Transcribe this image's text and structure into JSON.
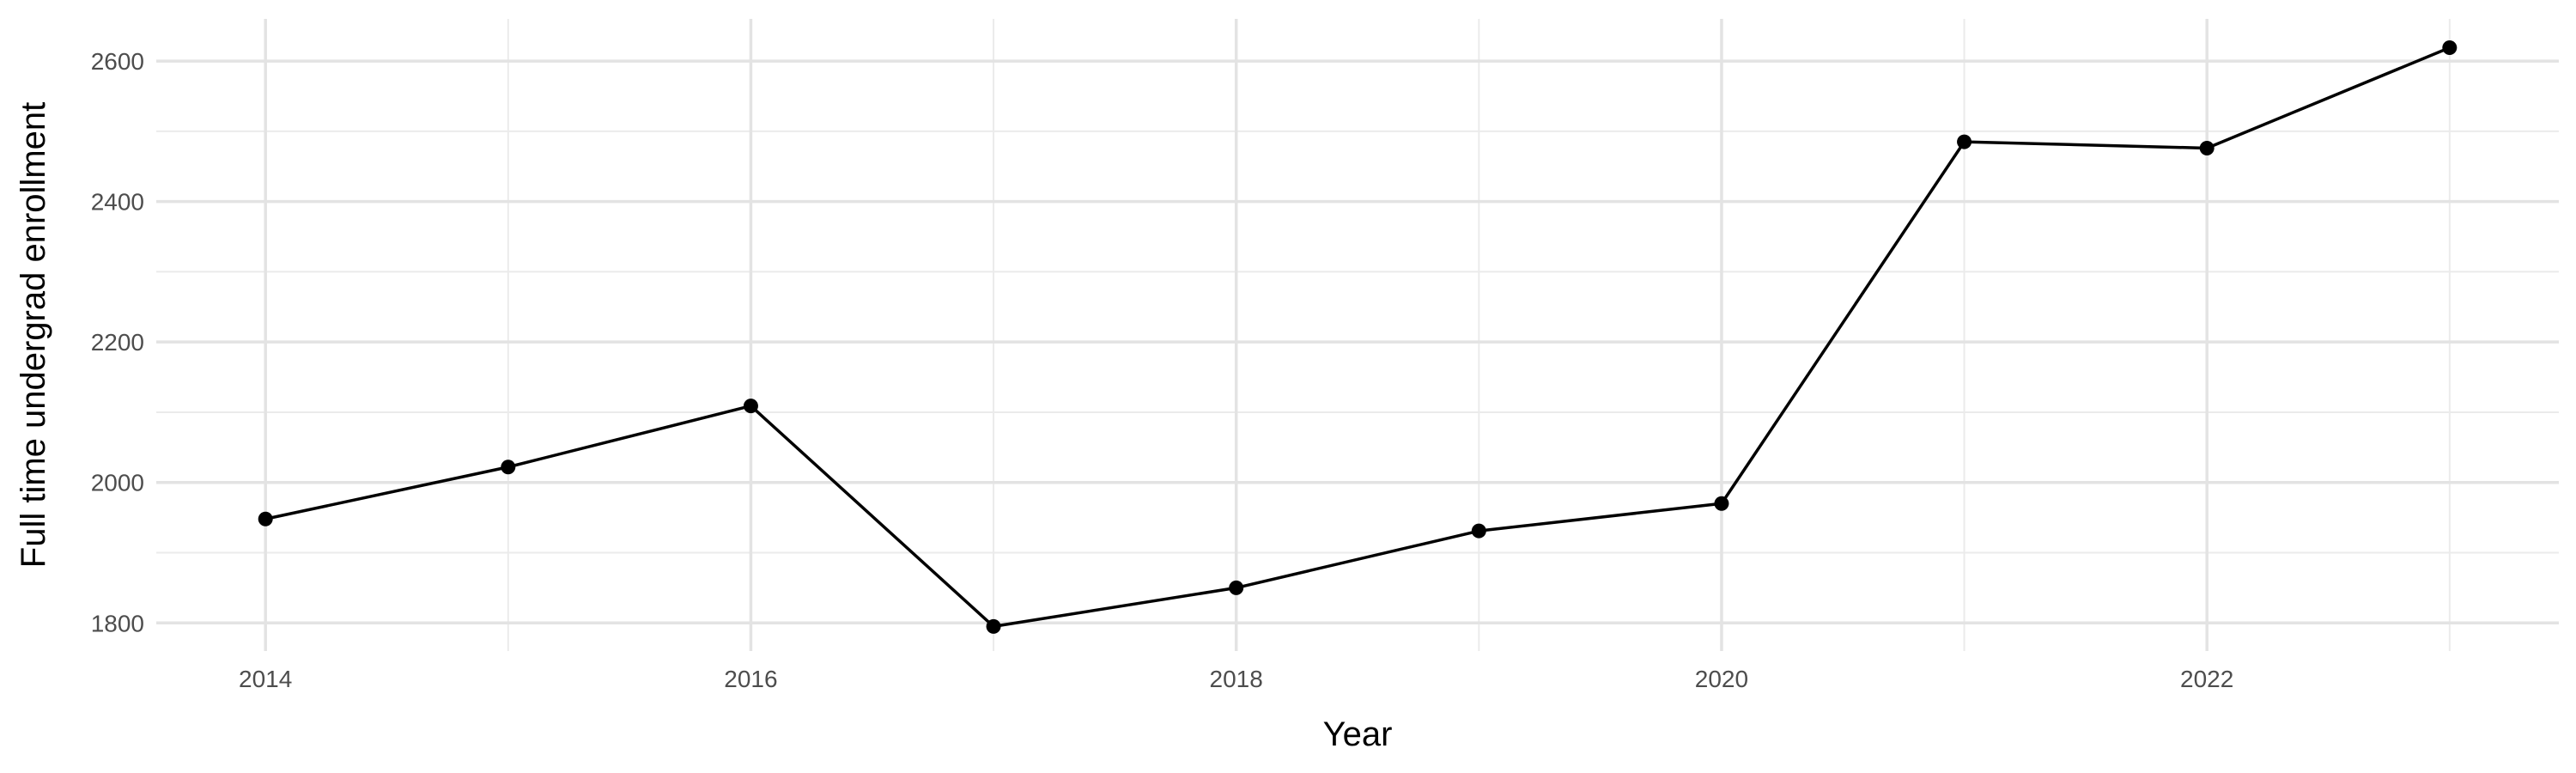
{
  "chart_data": {
    "type": "line",
    "title": "",
    "xlabel": "Year",
    "ylabel": "Full time undergrad enrollment",
    "xlim": [
      2013.55,
      2023.45
    ],
    "ylim": [
      1760,
      2660
    ],
    "x_ticks": [
      2014,
      2016,
      2018,
      2020,
      2022
    ],
    "x_tick_labels": [
      "2014",
      "2016",
      "2018",
      "2020",
      "2022"
    ],
    "y_ticks": [
      1800,
      2000,
      2200,
      2400,
      2600
    ],
    "y_tick_labels": [
      "1800",
      "2000",
      "2200",
      "2400",
      "2600"
    ],
    "x_minor_ticks": [
      2015,
      2017,
      2019,
      2021,
      2023
    ],
    "y_minor_ticks": [
      1900,
      2100,
      2300,
      2500
    ],
    "grid": true,
    "legend": "none",
    "series": [
      {
        "x": [
          2014,
          2015,
          2016,
          2017,
          2018,
          2019,
          2020,
          2021,
          2022,
          2023
        ],
        "values": [
          1948,
          2022,
          2109,
          1795,
          1850,
          1931,
          1970,
          2485,
          2476,
          2619
        ],
        "color": "#000000"
      }
    ]
  }
}
